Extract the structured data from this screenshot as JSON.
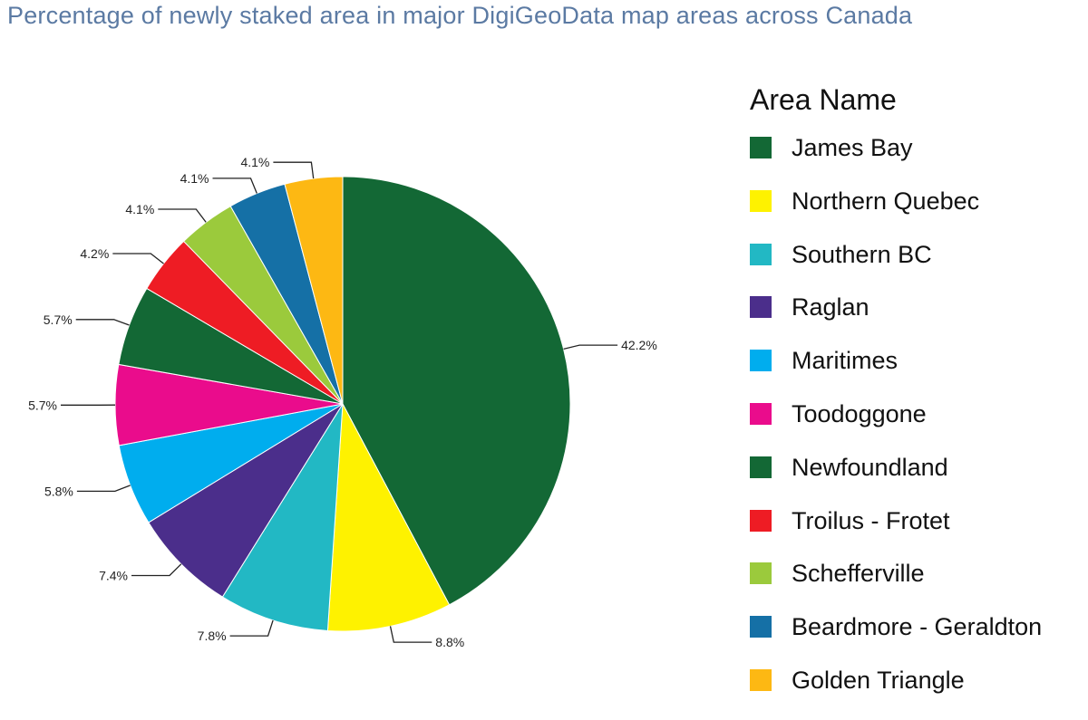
{
  "chart_data": {
    "type": "pie",
    "title": "Percentage of newly staked area in major DigiGeoData map areas  across Canada",
    "legend_title": "Area Name",
    "legend_position": "right",
    "categories": [
      "James Bay",
      "Northern Quebec",
      "Southern BC",
      "Raglan",
      "Maritimes",
      "Toodoggone",
      "Newfoundland",
      "Troilus - Frotet",
      "Schefferville",
      "Beardmore - Geraldton",
      "Golden Triangle"
    ],
    "values": [
      42.2,
      8.8,
      7.8,
      7.4,
      5.8,
      5.7,
      5.7,
      4.2,
      4.1,
      4.1,
      4.1
    ],
    "labels": [
      "42.2%",
      "8.8%",
      "7.8%",
      "7.4%",
      "5.8%",
      "5.7%",
      "5.7%",
      "4.2%",
      "4.1%",
      "4.1%",
      "4.1%"
    ],
    "colors": [
      "#136835",
      "#fef200",
      "#22b8c4",
      "#4b2e8b",
      "#00adee",
      "#ea0c8c",
      "#136835",
      "#ee1c24",
      "#9bca3c",
      "#1570a6",
      "#fdb813"
    ]
  }
}
